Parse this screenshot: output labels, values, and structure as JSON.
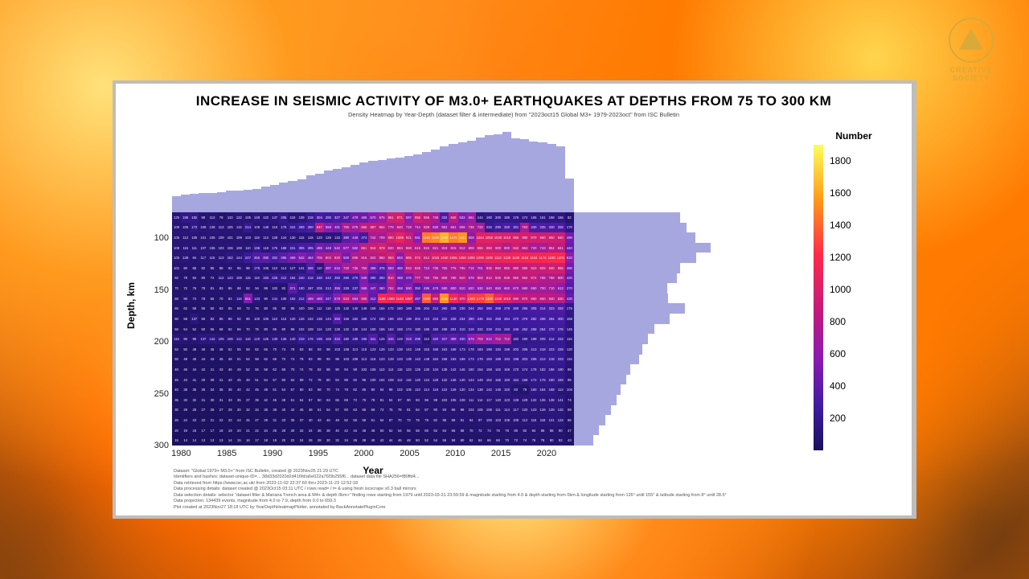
{
  "logo": {
    "line1": "CREATIVE",
    "line2": "SOCIETY"
  },
  "chart": {
    "type": "heatmap-with-marginals",
    "title": "INCREASE IN SEISMIC ACTIVITY OF M3.0+ EARTHQUAKES AT DEPTHS FROM 75 TO 300 KM",
    "subtitle": "Density Heatmap by Year-Depth (dataset filter & intermediate) from \"2023oct15 Global M3+ 1979-2023oct\" from ISC Bulletin",
    "x": {
      "label": "Year",
      "min": 1979,
      "max": 2023,
      "n": 45,
      "ticks": [
        1980,
        1985,
        1990,
        1995,
        2000,
        2005,
        2010,
        2015,
        2020
      ],
      "label_fontsize": 12,
      "tick_fontsize": 11
    },
    "y": {
      "label": "Depth, km",
      "min": 75,
      "max": 300,
      "n": 23,
      "ticks": [
        100,
        150,
        200,
        250,
        300
      ],
      "label_fontsize": 12,
      "tick_fontsize": 11
    },
    "marginal_color": "#a7a7df",
    "top_marginal": [
      1180,
      1350,
      1400,
      1420,
      1450,
      1500,
      1600,
      1650,
      1700,
      1750,
      1900,
      2050,
      2200,
      2350,
      2480,
      2780,
      2900,
      3100,
      3250,
      3350,
      3550,
      3700,
      3850,
      3900,
      4000,
      4100,
      4200,
      4350,
      4500,
      4700,
      4950,
      5100,
      5200,
      5350,
      5600,
      5750,
      5850,
      6000,
      5500,
      5450,
      5300,
      5200,
      5100,
      4900,
      2500
    ],
    "right_marginal": [
      9800,
      10400,
      11200,
      12600,
      11300,
      9800,
      9500,
      8600,
      8700,
      10200,
      8800,
      7400,
      6800,
      6300,
      6000,
      5200,
      4800,
      4300,
      3900,
      3400,
      2900,
      2300,
      1800
    ],
    "heatmap_rows": [
      [
        125,
        185,
        182,
        98,
        113,
        78,
        110,
        132,
        105,
        149,
        122,
        147,
        205,
        118,
        138,
        218,
        304,
        280,
        327,
        347,
        479,
        465,
        570,
        675,
        951,
        971,
        597,
        955,
        866,
        745,
        332,
        846,
        532,
        661,
        144,
        190,
        200,
        185,
        176,
        172,
        165,
        161,
        158,
        156,
        82
      ],
      [
        109,
        105,
        173,
        109,
        128,
        113,
        105,
        115,
        214,
        108,
        148,
        118,
        176,
        224,
        269,
        300,
        847,
        559,
        481,
        765,
        679,
        865,
        887,
        864,
        779,
        840,
        718,
        714,
        829,
        635,
        652,
        661,
        658,
        738,
        723,
        226,
        290,
        330,
        301,
        763,
        340,
        335,
        330,
        326,
        170
      ],
      [
        105,
        113,
        105,
        101,
        105,
        109,
        101,
        109,
        103,
        118,
        113,
        128,
        124,
        130,
        115,
        118,
        120,
        126,
        133,
        380,
        449,
        274,
        742,
        709,
        980,
        1086,
        921,
        581,
        1460,
        1500,
        1640,
        1475,
        1541,
        608,
        1044,
        1050,
        1030,
        1010,
        995,
        980,
        970,
        960,
        950,
        940,
        490
      ],
      [
        108,
        115,
        111,
        107,
        105,
        103,
        106,
        108,
        110,
        196,
        118,
        175,
        188,
        231,
        305,
        305,
        486,
        448,
        542,
        577,
        582,
        861,
        916,
        979,
        820,
        884,
        868,
        815,
        824,
        821,
        819,
        815,
        812,
        808,
        955,
        950,
        900,
        800,
        942,
        853,
        720,
        743,
        852,
        841,
        440
      ],
      [
        105,
        139,
        94,
        117,
        115,
        113,
        162,
        144,
        247,
        355,
        380,
        302,
        395,
        469,
        542,
        464,
        706,
        804,
        820,
        500,
        805,
        815,
        822,
        860,
        963,
        593,
        965,
        972,
        912,
        1015,
        1040,
        1055,
        1068,
        1080,
        1090,
        1100,
        1112,
        1126,
        1140,
        1152,
        1164,
        1176,
        1188,
        1200,
        620
      ],
      [
        101,
        90,
        85,
        82,
        85,
        88,
        92,
        95,
        98,
        176,
        105,
        110,
        114,
        127,
        141,
        336,
        110,
        497,
        515,
        720,
        735,
        750,
        468,
        376,
        583,
        468,
        810,
        825,
        710,
        735,
        755,
        775,
        795,
        715,
        701,
        835,
        850,
        865,
        880,
        895,
        910,
        925,
        940,
        955,
        490
      ],
      [
        82,
        78,
        84,
        80,
        72,
        112,
        123,
        108,
        115,
        119,
        183,
        225,
        212,
        184,
        240,
        218,
        230,
        242,
        250,
        260,
        270,
        539,
        290,
        300,
        810,
        488,
        475,
        777,
        760,
        785,
        808,
        788,
        810,
        678,
        802,
        814,
        826,
        838,
        850,
        862,
        874,
        788,
        788,
        800,
        420
      ],
      [
        70,
        72,
        76,
        78,
        81,
        83,
        85,
        88,
        92,
        94,
        98,
        102,
        82,
        371,
        190,
        197,
        205,
        213,
        355,
        229,
        237,
        569,
        447,
        380,
        762,
        458,
        550,
        350,
        495,
        478,
        590,
        600,
        610,
        620,
        630,
        640,
        650,
        660,
        670,
        680,
        690,
        700,
        710,
        612,
        370
      ],
      [
        68,
        96,
        73,
        78,
        65,
        70,
        83,
        118,
        551,
        133,
        90,
        141,
        108,
        182,
        212,
        499,
        488,
        347,
        579,
        823,
        664,
        808,
        412,
        1166,
        1080,
        1140,
        1087,
        467,
        1360,
        880,
        1540,
        1140,
        970,
        1280,
        1279,
        1380,
        1126,
        1010,
        890,
        870,
        860,
        850,
        840,
        830,
        430
      ],
      [
        65,
        62,
        58,
        56,
        60,
        63,
        65,
        68,
        72,
        76,
        80,
        85,
        90,
        95,
        100,
        106,
        112,
        118,
        125,
        132,
        140,
        148,
        156,
        164,
        172,
        180,
        188,
        196,
        204,
        212,
        260,
        228,
        236,
        244,
        252,
        260,
        269,
        278,
        260,
        296,
        305,
        314,
        323,
        332,
        175
      ],
      [
        60,
        58,
        137,
        56,
        82,
        85,
        88,
        92,
        96,
        100,
        105,
        110,
        115,
        120,
        126,
        132,
        138,
        144,
        350,
        156,
        162,
        168,
        174,
        180,
        186,
        192,
        198,
        204,
        210,
        216,
        222,
        228,
        234,
        290,
        246,
        252,
        258,
        264,
        270,
        276,
        282,
        288,
        294,
        300,
        158
      ],
      [
        56,
        54,
        52,
        50,
        55,
        58,
        62,
        66,
        70,
        75,
        80,
        85,
        90,
        96,
        102,
        108,
        114,
        120,
        126,
        132,
        138,
        144,
        150,
        156,
        162,
        168,
        174,
        180,
        186,
        192,
        198,
        204,
        210,
        216,
        222,
        228,
        234,
        240,
        246,
        252,
        258,
        264,
        270,
        276,
        145
      ],
      [
        115,
        96,
        98,
        137,
        144,
        105,
        108,
        112,
        116,
        120,
        125,
        130,
        136,
        140,
        219,
        176,
        195,
        166,
        334,
        180,
        188,
        196,
        341,
        125,
        346,
        148,
        319,
        286,
        110,
        320,
        347,
        388,
        330,
        578,
        702,
        612,
        712,
        712,
        182,
        190,
        198,
        206,
        214,
        222,
        116
      ],
      [
        52,
        50,
        48,
        46,
        45,
        48,
        52,
        55,
        58,
        62,
        66,
        70,
        74,
        78,
        83,
        88,
        93,
        98,
        103,
        108,
        113,
        118,
        123,
        128,
        133,
        138,
        143,
        148,
        153,
        158,
        163,
        168,
        173,
        178,
        183,
        188,
        193,
        198,
        203,
        208,
        213,
        218,
        223,
        228,
        120
      ],
      [
        50,
        48,
        46,
        44,
        43,
        45,
        48,
        51,
        54,
        58,
        62,
        66,
        70,
        74,
        78,
        83,
        88,
        93,
        98,
        103,
        108,
        113,
        118,
        123,
        128,
        133,
        138,
        143,
        148,
        153,
        158,
        163,
        168,
        173,
        178,
        183,
        188,
        193,
        198,
        203,
        208,
        213,
        218,
        223,
        116
      ],
      [
        48,
        46,
        44,
        42,
        41,
        43,
        46,
        49,
        52,
        55,
        58,
        62,
        66,
        70,
        74,
        78,
        82,
        86,
        90,
        94,
        98,
        102,
        106,
        110,
        114,
        118,
        122,
        126,
        130,
        134,
        138,
        142,
        146,
        150,
        154,
        158,
        162,
        166,
        170,
        174,
        178,
        182,
        186,
        190,
        99
      ],
      [
        45,
        43,
        41,
        40,
        39,
        41,
        43,
        45,
        48,
        51,
        54,
        57,
        60,
        64,
        68,
        72,
        76,
        80,
        84,
        88,
        92,
        96,
        100,
        104,
        108,
        112,
        116,
        120,
        124,
        128,
        132,
        136,
        140,
        144,
        148,
        152,
        156,
        160,
        164,
        168,
        172,
        176,
        180,
        184,
        96
      ],
      [
        40,
        38,
        36,
        35,
        34,
        36,
        38,
        40,
        42,
        45,
        48,
        51,
        54,
        57,
        60,
        63,
        66,
        70,
        74,
        78,
        82,
        86,
        90,
        94,
        98,
        102,
        106,
        110,
        114,
        118,
        122,
        126,
        130,
        134,
        138,
        142,
        146,
        150,
        83,
        78,
        160,
        164,
        168,
        113,
        104
      ],
      [
        35,
        33,
        32,
        31,
        30,
        31,
        33,
        35,
        37,
        39,
        42,
        45,
        48,
        51,
        54,
        57,
        60,
        63,
        66,
        69,
        72,
        75,
        78,
        81,
        84,
        87,
        90,
        93,
        96,
        99,
        102,
        105,
        108,
        111,
        114,
        117,
        120,
        123,
        126,
        129,
        132,
        135,
        138,
        141,
        74
      ],
      [
        30,
        29,
        28,
        27,
        26,
        27,
        28,
        30,
        32,
        34,
        36,
        38,
        40,
        42,
        45,
        48,
        51,
        54,
        57,
        60,
        63,
        66,
        69,
        72,
        75,
        78,
        81,
        84,
        87,
        90,
        93,
        96,
        99,
        102,
        105,
        108,
        111,
        114,
        117,
        120,
        123,
        126,
        129,
        132,
        69
      ],
      [
        25,
        24,
        23,
        22,
        21,
        22,
        23,
        24,
        25,
        27,
        29,
        31,
        33,
        35,
        37,
        40,
        43,
        46,
        49,
        52,
        55,
        58,
        61,
        64,
        67,
        70,
        73,
        76,
        79,
        82,
        85,
        88,
        91,
        94,
        97,
        100,
        103,
        106,
        109,
        112,
        115,
        118,
        121,
        124,
        65
      ],
      [
        20,
        19,
        18,
        17,
        17,
        18,
        19,
        20,
        21,
        22,
        24,
        26,
        28,
        30,
        32,
        34,
        36,
        38,
        40,
        42,
        44,
        46,
        48,
        50,
        52,
        54,
        56,
        58,
        60,
        62,
        64,
        66,
        68,
        70,
        72,
        74,
        76,
        78,
        80,
        82,
        84,
        86,
        88,
        90,
        47
      ],
      [
        15,
        14,
        14,
        13,
        13,
        13,
        14,
        15,
        16,
        17,
        18,
        19,
        20,
        22,
        24,
        26,
        28,
        30,
        32,
        34,
        36,
        38,
        40,
        42,
        44,
        46,
        48,
        50,
        52,
        54,
        56,
        58,
        60,
        62,
        64,
        66,
        68,
        70,
        72,
        74,
        76,
        78,
        80,
        82,
        43
      ]
    ],
    "colorscale": {
      "title": "Number",
      "min": 0,
      "max": 1900,
      "stops": [
        {
          "v": 1900,
          "color": "#faff5a"
        },
        {
          "v": 1560,
          "color": "#ff9a1a"
        },
        {
          "v": 1220,
          "color": "#ff2a4a"
        },
        {
          "v": 880,
          "color": "#c31b7a"
        },
        {
          "v": 570,
          "color": "#8a1bb0"
        },
        {
          "v": 270,
          "color": "#3d1ba0"
        },
        {
          "v": 0,
          "color": "#1a115a"
        }
      ],
      "ticks": [
        1800,
        1600,
        1400,
        1200,
        1000,
        800,
        600,
        400,
        200
      ]
    },
    "footnotes": [
      "Dataset: \"Global 1979+ M3.0+\" from ISC Bulletin, created @ 2023Nov25 21:29 UTC",
      "Identifiers and hashes: dataset-unique-ID=... 38d33d2020d2d416fd/a6e022a7f20b255f6... dataset data file SHA256=f80ffd4...",
      "Data retrieved from https://www.isc.ac.uk/ from 2023-11-02 22:37:60 thru 2023-11-23 12:52:18",
      "Data processing details: dataset created @ 2023Oct15 03:11 UTC / rows read= / t= & using fresh iscscrape v0.3 ball mirrors",
      "Data selection details: selector \"dataset filter & Mariana Trench area & M4+ & depth 0km+\" finding rows starting from 1979 until 2023-03-31 23:59:59 & magnitude starting from 4.0 & depth starting from 0km & longitude starting from 135° until 155° & latitude starting from 8° until 28.5°",
      "Data projection: 134439 events, magnitude from 4.0 to 7.9, depth from 0.0 to 659.3",
      "Plot created at 2023Nov27 18:18 UTC by YearDepthHeatmapPlotter, annotated by BackAnnotatePluginCore"
    ]
  }
}
